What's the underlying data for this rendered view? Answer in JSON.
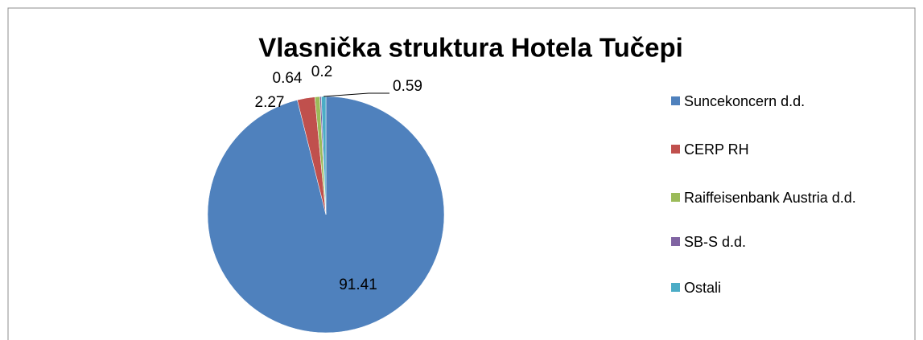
{
  "chart_data": {
    "type": "pie",
    "title": "Vlasnička struktura Hotela Tučepi",
    "categories": [
      "Suncekoncern d.d.",
      "CERP RH",
      "Raiffeisenbank Austria d.d.",
      "SB-S d.d.",
      "Ostali"
    ],
    "values": [
      91.41,
      2.27,
      0.64,
      0.2,
      0.59
    ],
    "colors": [
      "#4f81bd",
      "#c0504d",
      "#9bbb59",
      "#8064a2",
      "#4bacc6"
    ],
    "legend": "right"
  }
}
